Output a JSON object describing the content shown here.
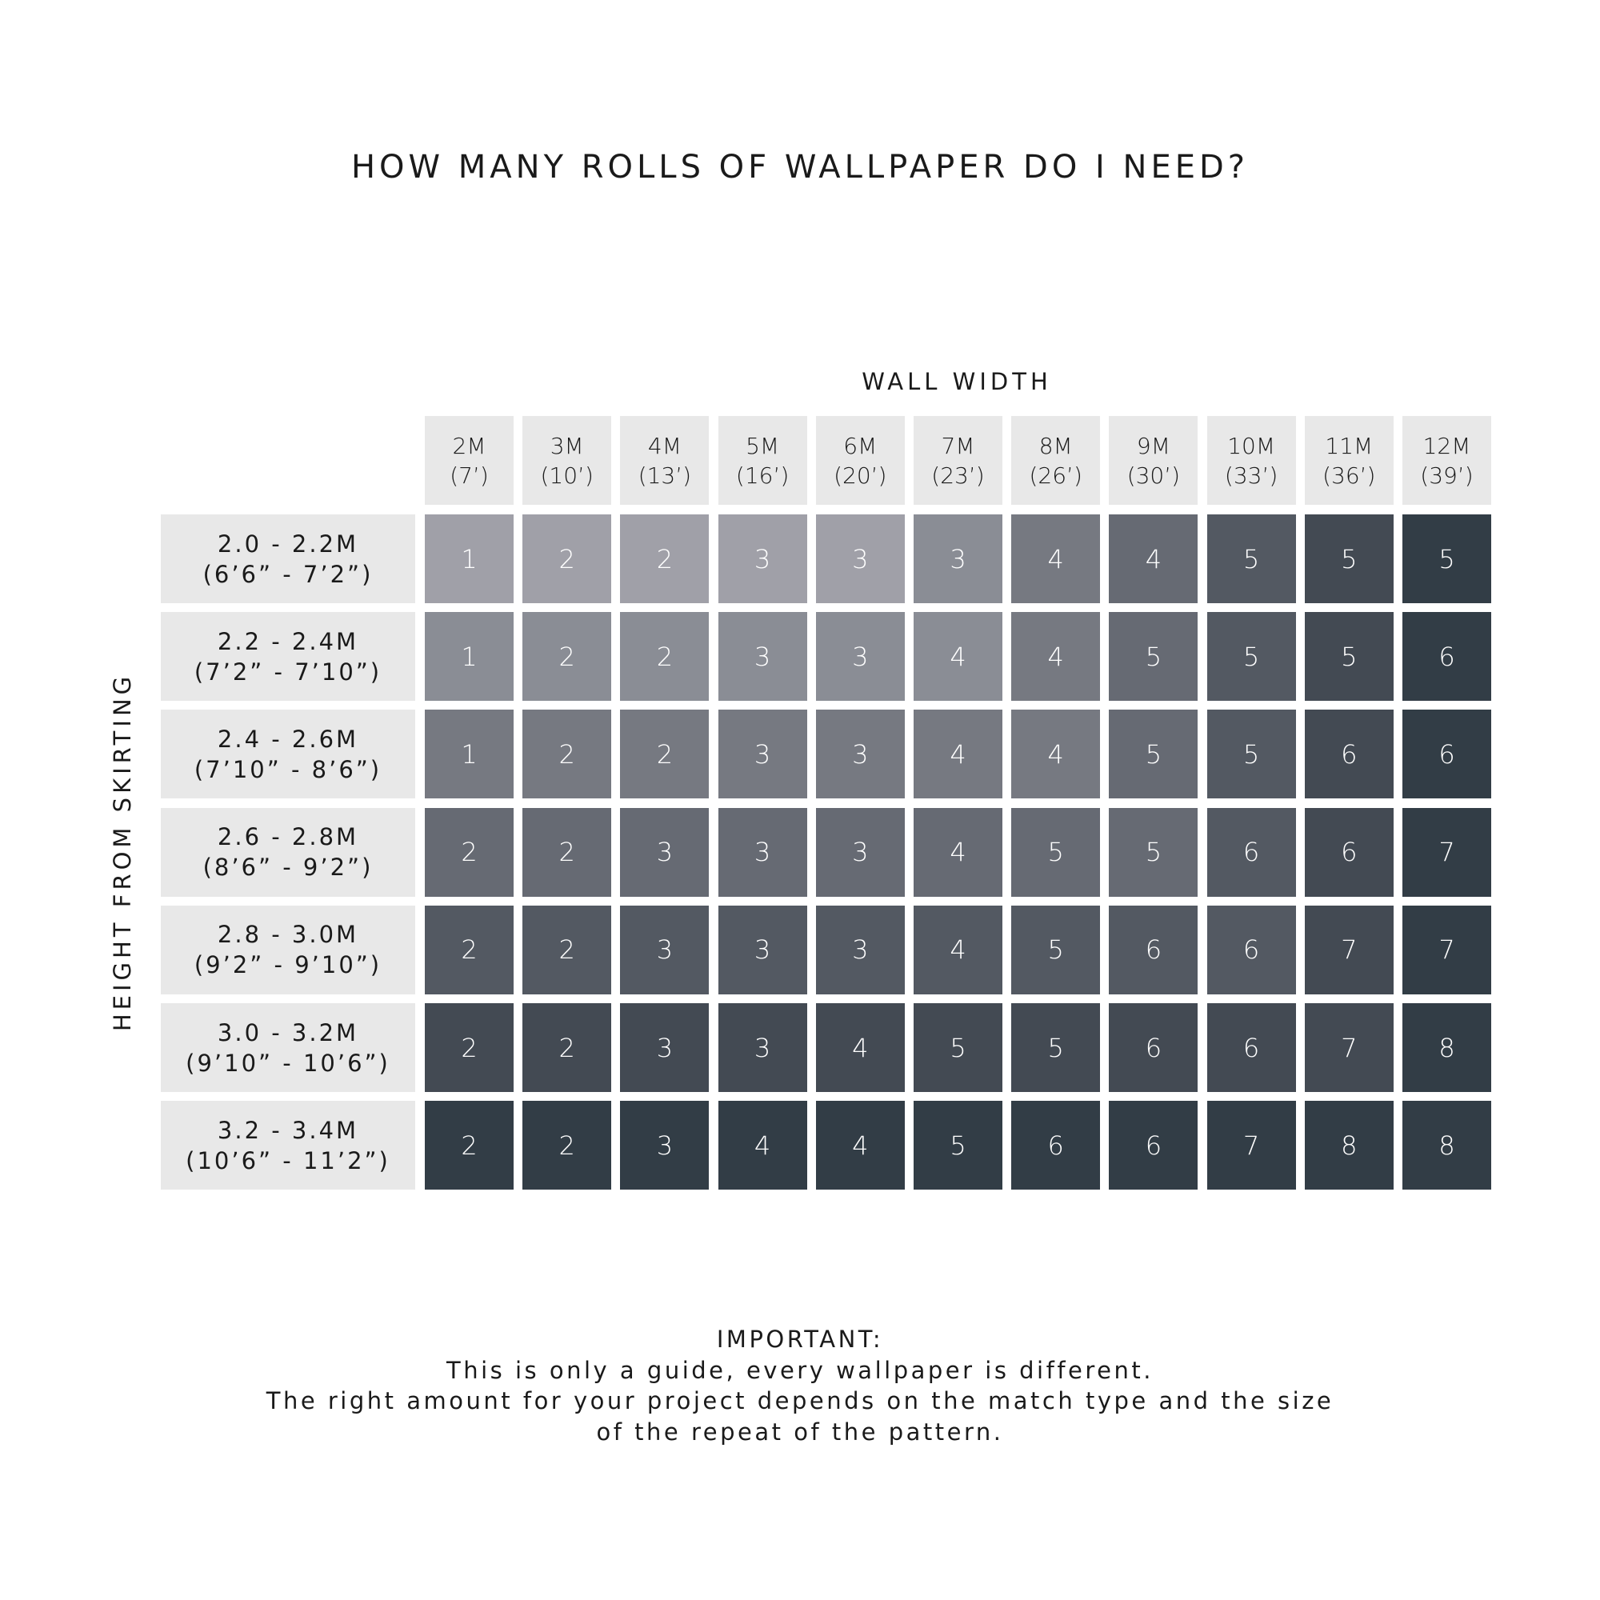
{
  "chart_data": {
    "type": "table",
    "title": "HOW MANY ROLLS OF WALLPAPER DO I NEED?",
    "xlabel": "WALL WIDTH",
    "ylabel": "HEIGHT FROM SKIRTING",
    "columns": [
      {
        "metric": "2M",
        "imperial": "(7’)"
      },
      {
        "metric": "3M",
        "imperial": "(10’)"
      },
      {
        "metric": "4M",
        "imperial": "(13’)"
      },
      {
        "metric": "5M",
        "imperial": "(16’)"
      },
      {
        "metric": "6M",
        "imperial": "(20’)"
      },
      {
        "metric": "7M",
        "imperial": "(23’)"
      },
      {
        "metric": "8M",
        "imperial": "(26’)"
      },
      {
        "metric": "9M",
        "imperial": "(30’)"
      },
      {
        "metric": "10M",
        "imperial": "(33’)"
      },
      {
        "metric": "11M",
        "imperial": "(36’)"
      },
      {
        "metric": "12M",
        "imperial": "(39’)"
      }
    ],
    "rows": [
      {
        "metric": "2.0 - 2.2M",
        "imperial": "(6’6” - 7’2”)"
      },
      {
        "metric": "2.2 - 2.4M",
        "imperial": "(7’2” - 7’10”)"
      },
      {
        "metric": "2.4 - 2.6M",
        "imperial": "(7’10” - 8’6”)"
      },
      {
        "metric": "2.6 - 2.8M",
        "imperial": "(8’6” - 9’2”)"
      },
      {
        "metric": "2.8 - 3.0M",
        "imperial": "(9’2” - 9’10”)"
      },
      {
        "metric": "3.0 - 3.2M",
        "imperial": "(9’10” - 10’6”)"
      },
      {
        "metric": "3.2 - 3.4M",
        "imperial": "(10’6” - 11’2”)"
      }
    ],
    "values": [
      [
        1,
        2,
        2,
        3,
        3,
        3,
        4,
        4,
        5,
        5,
        5
      ],
      [
        1,
        2,
        2,
        3,
        3,
        4,
        4,
        5,
        5,
        5,
        6
      ],
      [
        1,
        2,
        2,
        3,
        3,
        4,
        4,
        5,
        5,
        6,
        6
      ],
      [
        2,
        2,
        3,
        3,
        3,
        4,
        5,
        5,
        6,
        6,
        7
      ],
      [
        2,
        2,
        3,
        3,
        3,
        4,
        5,
        6,
        6,
        7,
        7
      ],
      [
        2,
        2,
        3,
        3,
        4,
        5,
        5,
        6,
        6,
        7,
        8
      ],
      [
        2,
        2,
        3,
        4,
        4,
        5,
        6,
        6,
        7,
        8,
        8
      ]
    ],
    "cell_colors": [
      [
        "#a0a0a8",
        "#a0a0a8",
        "#a0a0a8",
        "#a0a0a8",
        "#a0a0a8",
        "#8a8d95",
        "#767981",
        "#666a73",
        "#535962",
        "#434a53",
        "#323d46"
      ],
      [
        "#8a8d95",
        "#8a8d95",
        "#8a8d95",
        "#8a8d95",
        "#8a8d95",
        "#8a8d95",
        "#767981",
        "#666a73",
        "#535962",
        "#434a53",
        "#323d46"
      ],
      [
        "#767981",
        "#767981",
        "#767981",
        "#767981",
        "#767981",
        "#767981",
        "#767981",
        "#666a73",
        "#535962",
        "#434a53",
        "#323d46"
      ],
      [
        "#666a73",
        "#666a73",
        "#666a73",
        "#666a73",
        "#666a73",
        "#666a73",
        "#666a73",
        "#666a73",
        "#535962",
        "#434a53",
        "#323d46"
      ],
      [
        "#535962",
        "#535962",
        "#535962",
        "#535962",
        "#535962",
        "#535962",
        "#535962",
        "#535962",
        "#535962",
        "#434a53",
        "#323d46"
      ],
      [
        "#434a53",
        "#434a53",
        "#434a53",
        "#434a53",
        "#434a53",
        "#434a53",
        "#434a53",
        "#434a53",
        "#434a53",
        "#434a53",
        "#323d46"
      ],
      [
        "#323d46",
        "#323d46",
        "#323d46",
        "#323d46",
        "#323d46",
        "#323d46",
        "#323d46",
        "#323d46",
        "#323d46",
        "#323d46",
        "#323d46"
      ]
    ],
    "header_color": "#e8e8e8"
  },
  "footer": {
    "heading": "IMPORTANT:",
    "lines": [
      "This is only a guide, every wallpaper is different.",
      "The right amount for your project depends on the match type and the size",
      "of the repeat of the pattern."
    ]
  }
}
